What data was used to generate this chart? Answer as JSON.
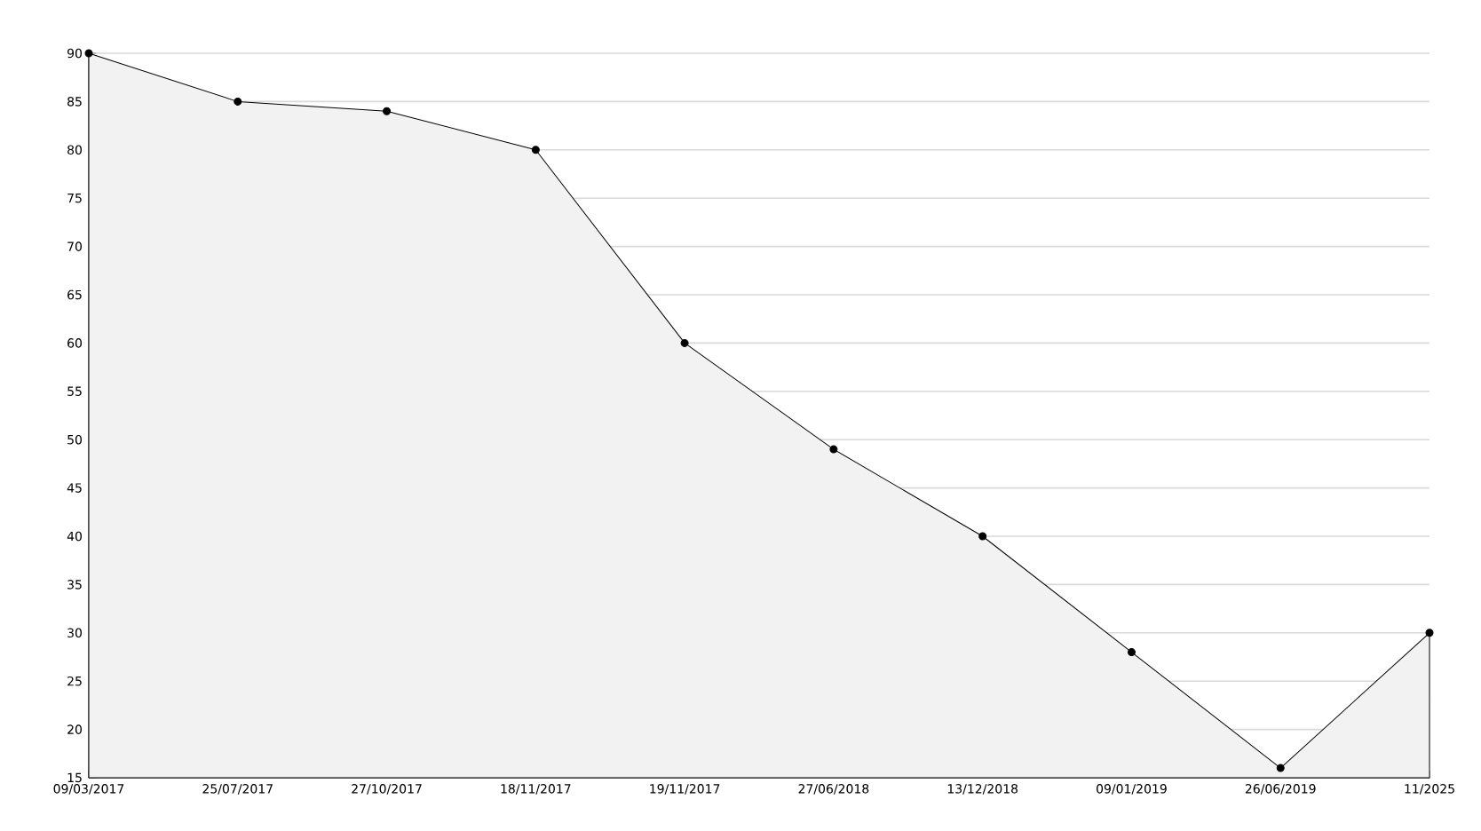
{
  "chart_data": {
    "type": "area",
    "categories": [
      "09/03/2017",
      "25/07/2017",
      "27/10/2017",
      "18/11/2017",
      "19/11/2017",
      "27/06/2018",
      "13/12/2018",
      "09/01/2019",
      "26/06/2019",
      "11/2025"
    ],
    "values": [
      90,
      85,
      84,
      80,
      60,
      49,
      40,
      28,
      16,
      30
    ],
    "color": "#f2f2f2",
    "ylim": [
      15,
      90
    ],
    "yticks": [
      15,
      20,
      25,
      30,
      35,
      40,
      45,
      50,
      55,
      60,
      65,
      70,
      75,
      80,
      85,
      90
    ],
    "grid": "y",
    "marker": "circle",
    "line_style": "solid"
  }
}
